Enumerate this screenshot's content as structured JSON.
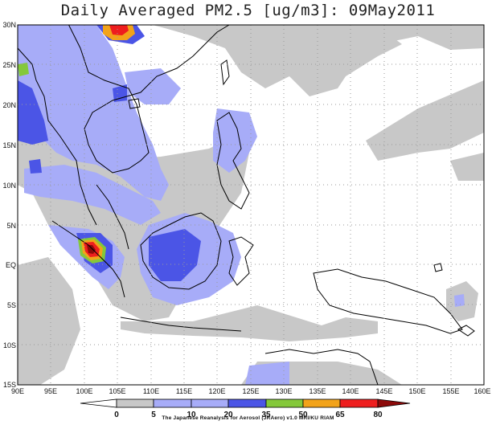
{
  "title": "Daily Averaged PM2.5 [ug/m3]: 09May2011",
  "credit": "The Japanese Reanalysis for Aerosol (JRAero) v1.0 MRI/KU RIAM",
  "lat_ticks": [
    "30N",
    "25N",
    "20N",
    "15N",
    "10N",
    "5N",
    "EQ",
    "5S",
    "10S",
    "15S"
  ],
  "lon_ticks": [
    "90E",
    "95E",
    "100E",
    "105E",
    "110E",
    "115E",
    "120E",
    "125E",
    "130E",
    "135E",
    "140E",
    "145E",
    "150E",
    "155E",
    "160E"
  ],
  "colorbar": {
    "labels": [
      "0",
      "5",
      "10",
      "20",
      "35",
      "50",
      "65",
      "80"
    ],
    "colors": [
      "#ffffff",
      "#c8c8c8",
      "#a7acf8",
      "#4b55e6",
      "#84c83a",
      "#f2a31a",
      "#ee1e1e",
      "#8c0a0a"
    ]
  },
  "colors": {
    "land_line": "#000000",
    "grid": "#9a9a9a"
  }
}
